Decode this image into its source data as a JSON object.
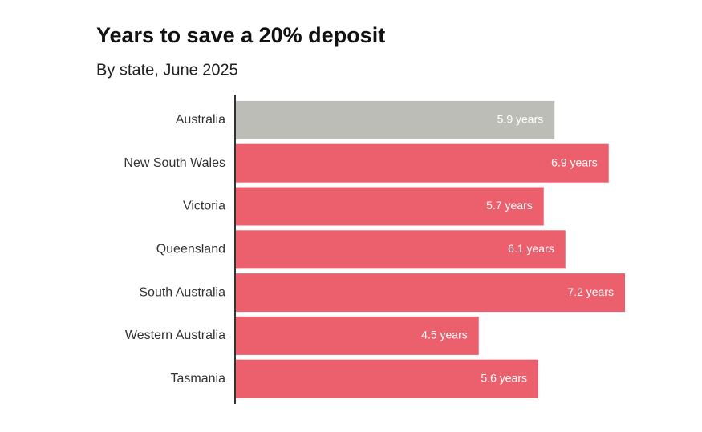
{
  "chart_data": {
    "type": "bar",
    "orientation": "horizontal",
    "title": "Years to save a 20% deposit",
    "subtitle": "By state, June 2025",
    "categories": [
      "Australia",
      "New South Wales",
      "Victoria",
      "Queensland",
      "South Australia",
      "Western Australia",
      "Tasmania"
    ],
    "values": [
      5.9,
      6.9,
      5.7,
      6.1,
      7.2,
      4.5,
      5.6
    ],
    "value_labels": [
      "5.9 years",
      "6.9 years",
      "5.7 years",
      "6.1 years",
      "7.2 years",
      "4.5 years",
      "5.6 years"
    ],
    "colors": [
      "#bdbdb8",
      "#ec5f6d",
      "#ec5f6d",
      "#ec5f6d",
      "#ec5f6d",
      "#ec5f6d",
      "#ec5f6d"
    ]
  }
}
